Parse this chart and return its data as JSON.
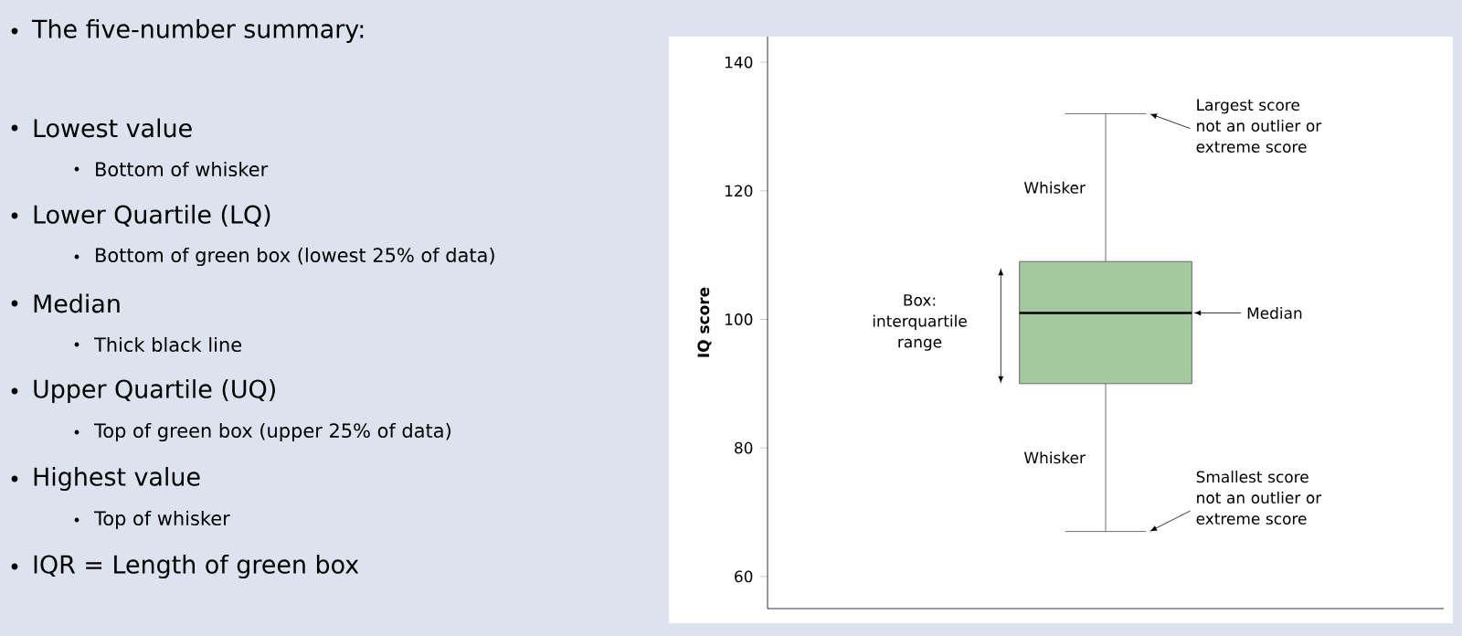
{
  "chart_data": [
    {
      "type": "other",
      "title": "The five-number summary:",
      "annotations": [
        "Lowest value",
        "Bottom of whisker",
        "Lower Quartile (LQ)",
        "Bottom of green box (lowest 25% of data)",
        "Median",
        "Thick black line",
        "Upper Quartile (UQ)",
        "Top of green box (upper 25% of data)",
        "Highest value",
        "Top of whisker",
        "IQR = Length of green box"
      ]
    },
    {
      "type": "box",
      "ylabel": "IQ score",
      "categories": [
        null
      ],
      "color": "#a6c8a0",
      "ylim": [
        55,
        144
      ],
      "yticks": [
        60,
        80,
        100,
        120,
        140
      ],
      "tick_labels": "y",
      "boxes": [
        {
          "low": 67,
          "q1": 90,
          "median": 101,
          "q3": 109,
          "high": 132
        }
      ],
      "annotations": [
        "Largest score not an outlier or extreme score",
        "Median",
        "Smallest score not an outlier or extreme score",
        "Whisker",
        "Whisker",
        "Box: interquartile range"
      ]
    }
  ]
}
